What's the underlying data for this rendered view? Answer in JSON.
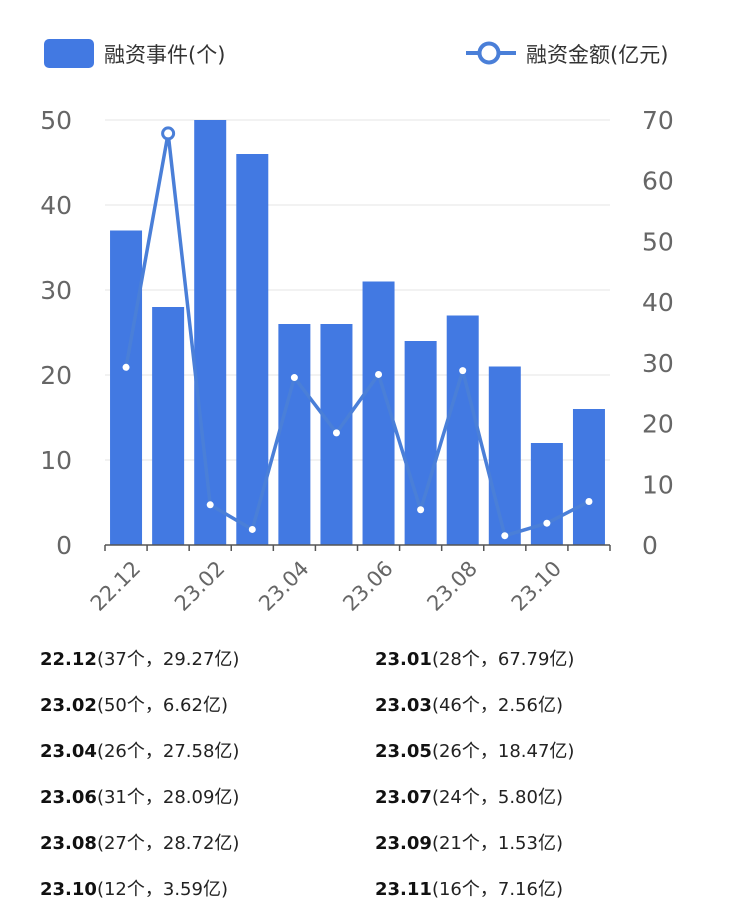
{
  "chart_data": {
    "type": "bar",
    "categories": [
      "22.12",
      "23.01",
      "23.02",
      "23.03",
      "23.04",
      "23.05",
      "23.06",
      "23.07",
      "23.08",
      "23.09",
      "23.10",
      "23.11"
    ],
    "x_tick_labels": [
      "22.12",
      "23.02",
      "23.04",
      "23.06",
      "23.08",
      "23.10"
    ],
    "series": [
      {
        "name": "融资事件(个)",
        "type": "bar",
        "axis": "left",
        "values": [
          37,
          28,
          50,
          46,
          26,
          26,
          31,
          24,
          27,
          21,
          12,
          16
        ]
      },
      {
        "name": "融资金额(亿元)",
        "type": "line",
        "axis": "right",
        "values": [
          29.27,
          67.79,
          6.62,
          2.56,
          27.58,
          18.47,
          28.09,
          5.8,
          28.72,
          1.53,
          3.59,
          7.16
        ]
      }
    ],
    "y_left": {
      "min": 0,
      "max": 50,
      "ticks": [
        0,
        10,
        20,
        30,
        40,
        50
      ]
    },
    "y_right": {
      "min": 0,
      "max": 70,
      "ticks": [
        0,
        10,
        20,
        30,
        40,
        50,
        60,
        70
      ]
    },
    "legend": {
      "position": "top",
      "bar_label": "融资事件(个)",
      "line_label": "融资金额(亿元)"
    },
    "colors": {
      "bar": "#4279e2",
      "line": "#4a7fd8",
      "grid": "#e9e9e9",
      "axis": "#555555",
      "tick_text": "#666666"
    },
    "grid": true
  },
  "summary": [
    {
      "month": "22.12",
      "detail": "(37个，29.27亿)"
    },
    {
      "month": "23.01",
      "detail": "(28个，67.79亿)"
    },
    {
      "month": "23.02",
      "detail": "(50个，6.62亿)"
    },
    {
      "month": "23.03",
      "detail": "(46个，2.56亿)"
    },
    {
      "month": "23.04",
      "detail": "(26个，27.58亿)"
    },
    {
      "month": "23.05",
      "detail": "(26个，18.47亿)"
    },
    {
      "month": "23.06",
      "detail": "(31个，28.09亿)"
    },
    {
      "month": "23.07",
      "detail": "(24个，5.80亿)"
    },
    {
      "month": "23.08",
      "detail": "(27个，28.72亿)"
    },
    {
      "month": "23.09",
      "detail": "(21个，1.53亿)"
    },
    {
      "month": "23.10",
      "detail": "(12个，3.59亿)"
    },
    {
      "month": "23.11",
      "detail": "(16个，7.16亿)"
    }
  ]
}
